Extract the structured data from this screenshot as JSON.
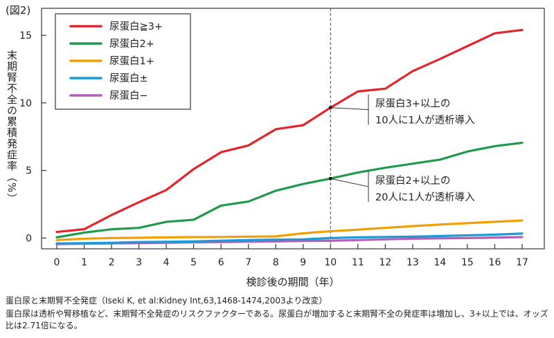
{
  "figure_label": "(図2)",
  "y_axis_label": "末期腎不全の累積発症率（%）",
  "chart_data": {
    "type": "line",
    "title": "",
    "xlabel": "検診後の期間（年）",
    "ylabel": "末期腎不全の累積発症率（%）",
    "x": [
      0,
      1,
      2,
      3,
      4,
      5,
      6,
      7,
      8,
      9,
      10,
      11,
      12,
      13,
      14,
      15,
      16,
      17
    ],
    "xlim": [
      0,
      17
    ],
    "ylim": [
      -0.8,
      17
    ],
    "yticks": [
      0,
      5,
      10,
      15
    ],
    "grid": false,
    "legend_position": "top-left",
    "series": [
      {
        "name": "尿蛋白≧3+",
        "color": "#e3242b",
        "values": [
          0.45,
          0.65,
          1.7,
          2.65,
          3.55,
          5.1,
          6.35,
          6.85,
          8.05,
          8.35,
          9.65,
          10.85,
          11.05,
          12.35,
          13.25,
          14.2,
          15.15,
          15.4
        ]
      },
      {
        "name": "尿蛋白2+",
        "color": "#1e9a4a",
        "values": [
          0.05,
          0.4,
          0.65,
          0.75,
          1.2,
          1.35,
          2.4,
          2.7,
          3.5,
          4.0,
          4.4,
          4.85,
          5.2,
          5.5,
          5.8,
          6.4,
          6.8,
          7.05
        ]
      },
      {
        "name": "尿蛋白1+",
        "color": "#f29f05",
        "values": [
          -0.15,
          -0.05,
          0.0,
          0.02,
          0.05,
          0.07,
          0.08,
          0.1,
          0.12,
          0.35,
          0.5,
          0.62,
          0.75,
          0.88,
          1.0,
          1.1,
          1.2,
          1.3
        ]
      },
      {
        "name": "尿蛋白±",
        "color": "#1a9ad6",
        "values": [
          -0.4,
          -0.38,
          -0.35,
          -0.3,
          -0.28,
          -0.25,
          -0.2,
          -0.15,
          -0.12,
          -0.1,
          0.0,
          0.05,
          0.08,
          0.1,
          0.15,
          0.2,
          0.25,
          0.33
        ]
      },
      {
        "name": "尿蛋白−",
        "color": "#b35fb5",
        "values": [
          -0.45,
          -0.42,
          -0.4,
          -0.38,
          -0.35,
          -0.32,
          -0.3,
          -0.27,
          -0.25,
          -0.22,
          -0.2,
          -0.15,
          -0.1,
          -0.05,
          -0.02,
          0.0,
          0.03,
          0.07
        ]
      }
    ],
    "reference_line": {
      "x": 10
    },
    "annotations": [
      {
        "lines": [
          "尿蛋白3+以上の",
          "10人に1人が透析導入"
        ],
        "point": [
          10,
          9.65
        ],
        "anchor_y": 9.5
      },
      {
        "lines": [
          "尿蛋白2+以上の",
          "20人に1人が透析導入"
        ],
        "point": [
          10,
          4.4
        ],
        "anchor_y": 3.8
      }
    ]
  },
  "caption": {
    "title": "蛋白尿と末期腎不全発症",
    "citation": "（Iseki K, et al:Kidney Int,63,1468-1474,2003より改変）",
    "body_line1": "蛋白尿は透析や腎移植など、末期腎不全発症のリスクファクターである。尿蛋白が増加すると末期腎不全の発症率は増加し、3+以上では、オッズ",
    "body_line2": "比は2.71倍になる。"
  }
}
